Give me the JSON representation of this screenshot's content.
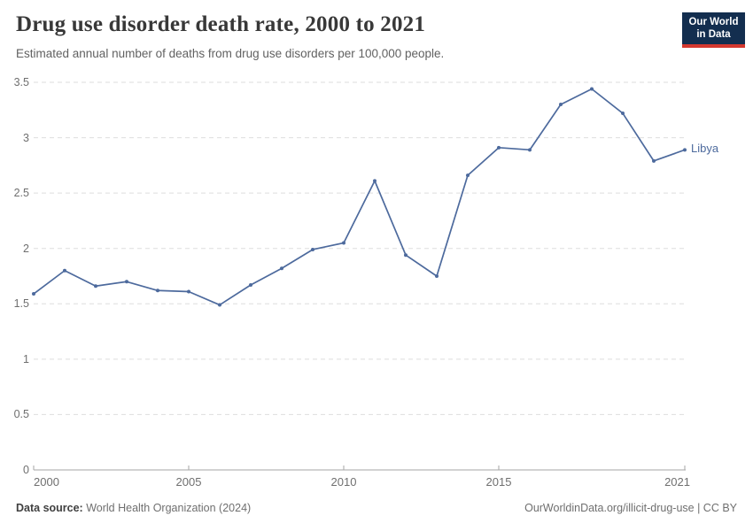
{
  "header": {
    "title": "Drug use disorder death rate, 2000 to 2021",
    "subtitle": "Estimated annual number of deaths from drug use disorders per 100,000 people.",
    "logo": {
      "line1": "Our World",
      "line2": "in Data"
    }
  },
  "chart_data": {
    "type": "line",
    "title": "Drug use disorder death rate, 2000 to 2021",
    "x": [
      2000,
      2001,
      2002,
      2003,
      2004,
      2005,
      2006,
      2007,
      2008,
      2009,
      2010,
      2011,
      2012,
      2013,
      2014,
      2015,
      2016,
      2017,
      2018,
      2019,
      2020,
      2021
    ],
    "series": [
      {
        "name": "Libya",
        "color": "#4d6a9d",
        "values": [
          1.59,
          1.8,
          1.66,
          1.7,
          1.62,
          1.61,
          1.49,
          1.67,
          1.82,
          1.99,
          2.05,
          2.61,
          1.94,
          1.75,
          2.66,
          2.91,
          2.89,
          3.3,
          3.44,
          3.22,
          2.79,
          2.89
        ]
      }
    ],
    "xlabel": "",
    "ylabel": "",
    "ylim": [
      0,
      3.5
    ],
    "xlim": [
      2000,
      2021
    ],
    "yticks": [
      0,
      0.5,
      1,
      1.5,
      2,
      2.5,
      3,
      3.5
    ],
    "xticks": [
      2000,
      2005,
      2010,
      2015,
      2021
    ],
    "grid": "horizontal dashed",
    "legend": "line-end label"
  },
  "footer": {
    "source_label": "Data source:",
    "source_text": " World Health Organization (2024)",
    "credit": "OurWorldinData.org/illicit-drug-use | CC BY"
  },
  "colors": {
    "line": "#4d6a9d",
    "grid": "#dedede",
    "axis": "#a5a5a5",
    "tick_label": "#6f6f6f",
    "title": "#383838",
    "subtitle": "#616161",
    "logo_bg": "#132e4f",
    "logo_accent": "#d4382f"
  }
}
